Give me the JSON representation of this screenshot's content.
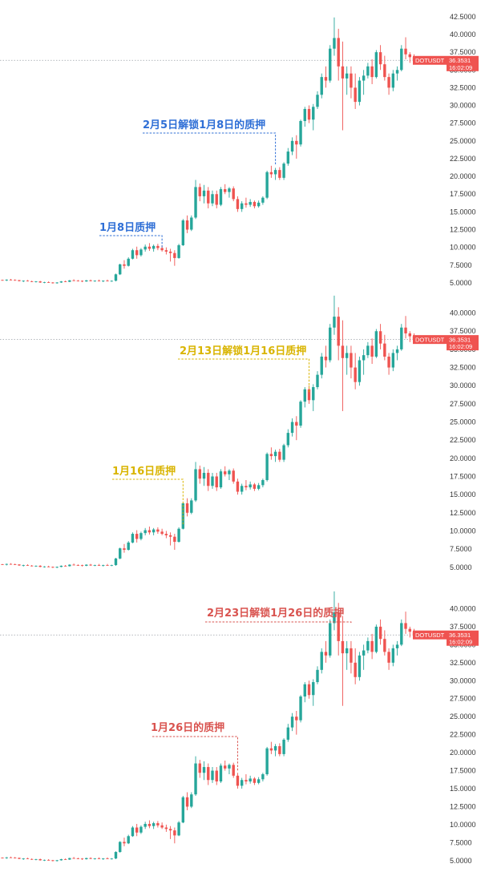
{
  "colors": {
    "up": "#26a69a",
    "down": "#ef5350",
    "price_tag": "#ef5350",
    "blue": "#2f6fd6",
    "yellow": "#d9b400",
    "red": "#d9534f"
  },
  "chart_data": [
    {
      "type": "candlestick",
      "yticks": [
        5,
        7.5,
        10,
        12.5,
        15,
        17.5,
        20,
        22.5,
        25,
        27.5,
        30,
        32.5,
        35,
        37.5,
        40,
        42.5
      ],
      "ytick_labels": [
        "5.0000",
        "7.5000",
        "10.0000",
        "12.5000",
        "15.0000",
        "17.5000",
        "20.0000",
        "22.5000",
        "25.0000",
        "27.5000",
        "30.0000",
        "32.5000",
        "35.0000",
        "37.5000",
        "40.0000",
        "42.5000"
      ],
      "ylim": [
        4.2,
        43.5
      ],
      "last_price": 36.3531,
      "symbol": "DOTUSDT",
      "last_price_label": "36.3531",
      "countdown": "16:02:09",
      "annotations": [
        {
          "text": "2月5日解锁1月8日的质押",
          "color": "blue",
          "end_index": 65,
          "end_value": 21.5
        },
        {
          "text": "1月8日质押",
          "color": "blue",
          "end_index": 38,
          "end_value": 10.0
        }
      ]
    },
    {
      "type": "candlestick",
      "yticks": [
        5,
        7.5,
        10,
        12.5,
        15,
        17.5,
        20,
        22.5,
        25,
        27.5,
        30,
        32.5,
        35,
        37.5,
        40
      ],
      "ytick_labels": [
        "5.0000",
        "7.5000",
        "10.0000",
        "12.5000",
        "15.0000",
        "17.5000",
        "20.0000",
        "22.5000",
        "25.0000",
        "27.5000",
        "30.0000",
        "32.5000",
        "35.0000",
        "37.5000",
        "40.0000"
      ],
      "ylim": [
        4.2,
        41.5
      ],
      "last_price": 36.3531,
      "symbol": "DOTUSDT",
      "last_price_label": "36.3531",
      "countdown": "16:02:09",
      "annotations": [
        {
          "text": "2月13日解锁1月16日质押",
          "color": "yellow",
          "end_index": 73,
          "end_value": 29.0
        },
        {
          "text": "1月16日质押",
          "color": "yellow",
          "end_index": 43,
          "end_value": 10.8
        }
      ]
    },
    {
      "type": "candlestick",
      "yticks": [
        5,
        7.5,
        10,
        12.5,
        15,
        17.5,
        20,
        22.5,
        25,
        27.5,
        30,
        32.5,
        35,
        37.5,
        40
      ],
      "ytick_labels": [
        "5.0000",
        "7.5000",
        "10.0000",
        "12.5000",
        "15.0000",
        "17.5000",
        "20.0000",
        "22.5000",
        "25.0000",
        "27.5000",
        "30.0000",
        "32.5000",
        "35.0000",
        "37.5000",
        "40.0000"
      ],
      "ylim": [
        4.2,
        41.5
      ],
      "last_price": 36.3531,
      "symbol": "DOTUSDT",
      "last_price_label": "36.3531",
      "countdown": "16:02:09",
      "annotations": [
        {
          "text": "2月23日解锁1月26日的质押",
          "color": "red",
          "end_index": 83,
          "end_value": 38.0
        },
        {
          "text": "1月26日的质押",
          "color": "red",
          "end_index": 56,
          "end_value": 17.5
        }
      ]
    }
  ],
  "ohlc": [
    [
      5.4,
      5.45,
      5.3,
      5.35
    ],
    [
      5.35,
      5.5,
      5.25,
      5.45
    ],
    [
      5.45,
      5.55,
      5.35,
      5.4
    ],
    [
      5.4,
      5.5,
      5.3,
      5.38
    ],
    [
      5.38,
      5.42,
      5.2,
      5.25
    ],
    [
      5.25,
      5.35,
      5.1,
      5.3
    ],
    [
      5.3,
      5.4,
      5.2,
      5.22
    ],
    [
      5.22,
      5.3,
      5.1,
      5.15
    ],
    [
      5.15,
      5.25,
      5.05,
      5.2
    ],
    [
      5.2,
      5.28,
      5.0,
      5.05
    ],
    [
      5.05,
      5.15,
      4.95,
      5.1
    ],
    [
      5.1,
      5.2,
      5.0,
      5.05
    ],
    [
      5.05,
      5.1,
      4.9,
      4.95
    ],
    [
      4.95,
      5.1,
      4.88,
      5.05
    ],
    [
      5.05,
      5.25,
      5.0,
      5.2
    ],
    [
      5.2,
      5.3,
      5.1,
      5.15
    ],
    [
      5.15,
      5.4,
      5.1,
      5.35
    ],
    [
      5.35,
      5.5,
      5.25,
      5.3
    ],
    [
      5.3,
      5.4,
      5.2,
      5.28
    ],
    [
      5.28,
      5.35,
      5.1,
      5.2
    ],
    [
      5.2,
      5.4,
      5.15,
      5.35
    ],
    [
      5.35,
      5.45,
      5.2,
      5.25
    ],
    [
      5.25,
      5.35,
      5.15,
      5.3
    ],
    [
      5.3,
      5.45,
      5.2,
      5.22
    ],
    [
      5.22,
      5.35,
      5.1,
      5.3
    ],
    [
      5.3,
      5.45,
      5.2,
      5.25
    ],
    [
      5.25,
      5.35,
      5.15,
      5.28
    ],
    [
      5.3,
      6.3,
      5.2,
      6.2
    ],
    [
      6.2,
      7.7,
      6.1,
      7.6
    ],
    [
      7.6,
      8.2,
      7.0,
      7.4
    ],
    [
      7.4,
      8.6,
      7.3,
      8.4
    ],
    [
      8.4,
      9.8,
      8.3,
      9.6
    ],
    [
      9.6,
      10.1,
      8.4,
      8.9
    ],
    [
      8.9,
      9.9,
      8.7,
      9.7
    ],
    [
      9.7,
      10.4,
      9.4,
      10.1
    ],
    [
      10.1,
      10.6,
      9.5,
      9.8
    ],
    [
      9.8,
      10.4,
      9.4,
      10.2
    ],
    [
      10.2,
      10.5,
      9.6,
      9.9
    ],
    [
      9.9,
      10.3,
      9.4,
      9.6
    ],
    [
      9.6,
      10.0,
      9.0,
      9.4
    ],
    [
      9.4,
      9.8,
      8.0,
      9.2
    ],
    [
      9.2,
      9.6,
      7.4,
      8.5
    ],
    [
      8.5,
      10.5,
      8.4,
      10.3
    ],
    [
      10.3,
      14.0,
      10.2,
      13.8
    ],
    [
      13.8,
      14.5,
      12.0,
      12.5
    ],
    [
      12.5,
      14.5,
      12.3,
      14.2
    ],
    [
      14.2,
      19.5,
      14.0,
      18.5
    ],
    [
      18.5,
      19.0,
      16.5,
      17.2
    ],
    [
      17.2,
      18.8,
      16.2,
      18.0
    ],
    [
      18.0,
      18.5,
      15.5,
      16.2
    ],
    [
      16.2,
      18.0,
      15.8,
      17.5
    ],
    [
      17.5,
      18.0,
      15.5,
      16.0
    ],
    [
      16.0,
      18.5,
      15.8,
      18.2
    ],
    [
      18.2,
      18.9,
      17.5,
      17.8
    ],
    [
      17.8,
      18.5,
      17.0,
      18.3
    ],
    [
      18.3,
      18.6,
      16.5,
      16.8
    ],
    [
      16.8,
      17.2,
      15.0,
      15.4
    ],
    [
      15.4,
      16.5,
      15.0,
      16.2
    ],
    [
      16.2,
      17.0,
      15.6,
      16.0
    ],
    [
      16.0,
      16.8,
      15.7,
      16.4
    ],
    [
      16.4,
      16.6,
      15.5,
      15.8
    ],
    [
      15.8,
      16.6,
      15.6,
      16.3
    ],
    [
      16.3,
      17.2,
      16.0,
      17.0
    ],
    [
      17.0,
      20.8,
      16.8,
      20.6
    ],
    [
      20.6,
      21.5,
      19.8,
      20.3
    ],
    [
      20.3,
      21.2,
      19.5,
      20.9
    ],
    [
      20.9,
      21.3,
      19.5,
      19.8
    ],
    [
      19.8,
      22.0,
      19.5,
      21.8
    ],
    [
      21.8,
      24.0,
      21.5,
      23.5
    ],
    [
      23.5,
      25.5,
      23.0,
      25.0
    ],
    [
      25.0,
      25.8,
      22.5,
      24.5
    ],
    [
      24.5,
      28.0,
      24.2,
      27.8
    ],
    [
      27.8,
      29.8,
      27.0,
      29.5
    ],
    [
      29.5,
      30.0,
      27.5,
      28.0
    ],
    [
      28.0,
      30.2,
      26.5,
      29.8
    ],
    [
      29.8,
      32.0,
      29.5,
      31.5
    ],
    [
      31.5,
      34.5,
      31.0,
      34.0
    ],
    [
      34.0,
      35.5,
      32.5,
      33.5
    ],
    [
      33.5,
      38.5,
      33.2,
      38.0
    ],
    [
      38.0,
      42.4,
      37.0,
      39.5
    ],
    [
      39.5,
      40.8,
      33.5,
      35.5
    ],
    [
      35.5,
      39.0,
      26.5,
      33.8
    ],
    [
      33.8,
      35.5,
      31.5,
      34.5
    ],
    [
      34.5,
      35.5,
      31.0,
      32.5
    ],
    [
      32.5,
      34.5,
      29.5,
      30.5
    ],
    [
      30.5,
      34.0,
      30.0,
      33.5
    ],
    [
      33.5,
      35.0,
      31.5,
      34.2
    ],
    [
      34.2,
      36.0,
      33.8,
      35.5
    ],
    [
      35.5,
      36.5,
      33.0,
      34.0
    ],
    [
      34.0,
      37.8,
      33.8,
      37.5
    ],
    [
      37.5,
      38.5,
      35.0,
      35.8
    ],
    [
      35.8,
      37.0,
      33.5,
      34.0
    ],
    [
      34.0,
      34.5,
      31.5,
      32.5
    ],
    [
      32.5,
      35.0,
      32.0,
      34.5
    ],
    [
      34.5,
      35.5,
      33.5,
      35.0
    ],
    [
      35.0,
      38.5,
      34.8,
      38.0
    ],
    [
      38.0,
      39.6,
      36.5,
      37.2
    ],
    [
      37.2,
      37.5,
      36.0,
      36.8
    ],
    [
      36.8,
      37.2,
      36.0,
      36.35
    ]
  ]
}
